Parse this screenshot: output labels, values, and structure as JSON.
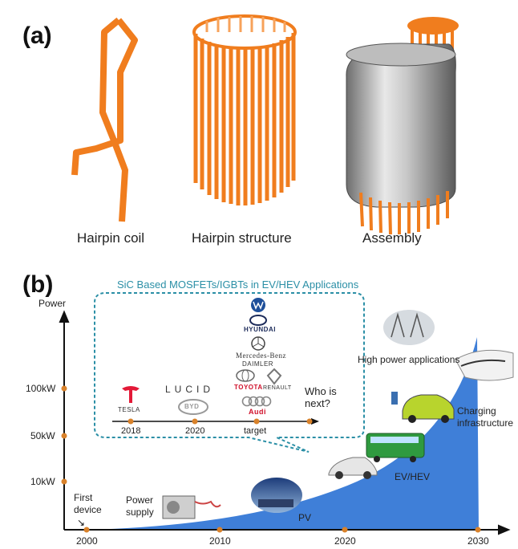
{
  "panel_a": {
    "label": "(a)",
    "captions": {
      "coil": "Hairpin coil",
      "structure": "Hairpin structure",
      "assembly": "Assembly"
    }
  },
  "panel_b": {
    "label": "(b)",
    "y_axis_label": "Power",
    "y_ticks": [
      "100kW",
      "50kW",
      "10kW"
    ],
    "x_ticks": [
      "2000",
      "2010",
      "2020",
      "2030"
    ],
    "callout": {
      "title": "SiC Based MOSFETs/IGBTs in EV/HEV Applications",
      "timeline": [
        "2018",
        "2020",
        "target"
      ],
      "question": "Who is next?",
      "logos": {
        "tesla": "TESLA",
        "lucid": "LUCID",
        "byd": "BYD",
        "hyundai": "HYUNDAI",
        "mercedes": "Mercedes-Benz",
        "daimler": "DAIMLER",
        "toyota": "TOYOTA",
        "renault": "RENAULT",
        "audi": "Audi"
      }
    },
    "annotations": {
      "first_device": "First device",
      "power_supply": "Power supply",
      "pv": "PV",
      "ev_hev": "EV/HEV",
      "charging": "Charging infrastructure",
      "high_power": "High power applications"
    }
  },
  "colors": {
    "orange": "#f07d1e",
    "blue_area": "#3f7fd8",
    "teal_border": "#2b8fa6",
    "axis_marker": "#d9822b"
  }
}
